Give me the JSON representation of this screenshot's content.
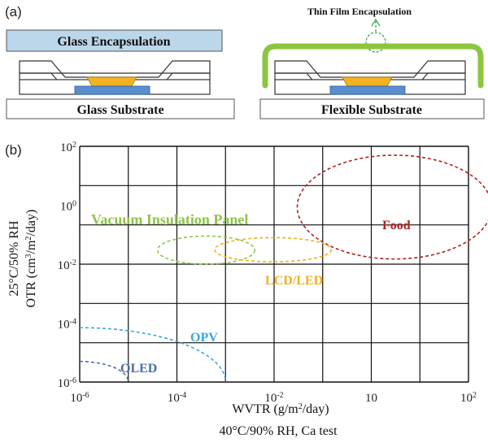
{
  "panel_a": {
    "label": "(a)",
    "glass_encapsulation": "Glass Encapsulation",
    "glass_substrate": "Glass Substrate",
    "thin_film_encapsulation": "Thin Film Encapsulation",
    "flexible_substrate": "Flexible Substrate"
  },
  "panel_b": {
    "label": "(b)"
  },
  "chart_data": {
    "type": "scatter",
    "xlabel": "WVTR (g/m²/day)",
    "xlabel_sub": "40°C/90% RH, Ca test",
    "ylabel": "OTR (cm³/m²/day)",
    "ylabel_sub": "25°C/50% RH",
    "x_scale": "log",
    "y_scale": "log",
    "xlim": [
      1e-06,
      100
    ],
    "ylim": [
      1e-06,
      100
    ],
    "x_ticks": [
      "10-6",
      "10-4",
      "10-2",
      "10",
      "102"
    ],
    "y_ticks": [
      "102",
      "100",
      "10-2",
      "10-4",
      "10-6"
    ],
    "grid": true,
    "regions": [
      {
        "name": "Food",
        "color": "#b22222",
        "center": [
          3.2,
          0.9
        ],
        "x_range": [
          0.03,
          300
        ],
        "y_range": [
          0.015,
          50
        ]
      },
      {
        "name": "LCD/LED",
        "color": "#f0b020",
        "center": [
          0.005,
          0.03
        ],
        "x_range": [
          0.0006,
          0.15
        ],
        "y_range": [
          0.012,
          0.08
        ]
      },
      {
        "name": "Vacuum Insulation Panel",
        "color": "#8fc44a",
        "center": [
          0.0005,
          0.03
        ],
        "x_range": [
          4e-05,
          0.004
        ],
        "y_range": [
          0.01,
          0.09
        ]
      },
      {
        "name": "OPV",
        "color": "#3aa8dc",
        "x_range": [
          1e-06,
          0.001
        ],
        "y_range": [
          1e-06,
          7e-05
        ]
      },
      {
        "name": "OLED",
        "color": "#4a6fa8",
        "x_range": [
          1e-06,
          1e-05
        ],
        "y_range": [
          1e-06,
          5e-06
        ]
      }
    ]
  }
}
